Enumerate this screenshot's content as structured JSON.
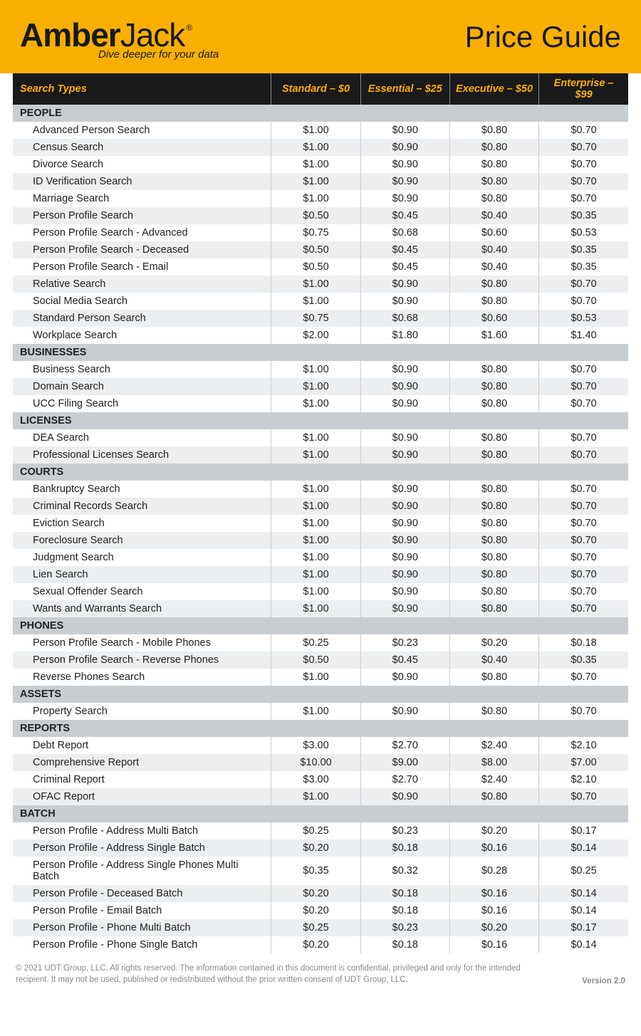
{
  "brand": {
    "name_part1": "Amber",
    "name_part2": "Jack",
    "registered": "®",
    "tagline": "Dive deeper for your data"
  },
  "title": "Price Guide",
  "columns": {
    "name": "Search Types",
    "tiers": [
      "Standard – $0",
      "Essential – $25",
      "Executive – $50",
      "Enterprise – $99"
    ]
  },
  "sections": [
    {
      "label": "PEOPLE",
      "rows": [
        {
          "name": "Advanced Person Search",
          "prices": [
            "$1.00",
            "$0.90",
            "$0.80",
            "$0.70"
          ]
        },
        {
          "name": "Census Search",
          "prices": [
            "$1.00",
            "$0.90",
            "$0.80",
            "$0.70"
          ]
        },
        {
          "name": "Divorce Search",
          "prices": [
            "$1.00",
            "$0.90",
            "$0.80",
            "$0.70"
          ]
        },
        {
          "name": "ID Verification Search",
          "prices": [
            "$1.00",
            "$0.90",
            "$0.80",
            "$0.70"
          ]
        },
        {
          "name": "Marriage Search",
          "prices": [
            "$1.00",
            "$0.90",
            "$0.80",
            "$0.70"
          ]
        },
        {
          "name": "Person Profile Search",
          "prices": [
            "$0.50",
            "$0.45",
            "$0.40",
            "$0.35"
          ]
        },
        {
          "name": "Person Profile Search - Advanced",
          "prices": [
            "$0.75",
            "$0.68",
            "$0.60",
            "$0.53"
          ]
        },
        {
          "name": "Person Profile Search - Deceased",
          "prices": [
            "$0.50",
            "$0.45",
            "$0.40",
            "$0.35"
          ]
        },
        {
          "name": "Person Profile Search - Email",
          "prices": [
            "$0.50",
            "$0.45",
            "$0.40",
            "$0.35"
          ]
        },
        {
          "name": "Relative Search",
          "prices": [
            "$1.00",
            "$0.90",
            "$0.80",
            "$0.70"
          ]
        },
        {
          "name": "Social Media Search",
          "prices": [
            "$1.00",
            "$0.90",
            "$0.80",
            "$0.70"
          ]
        },
        {
          "name": "Standard Person Search",
          "prices": [
            "$0.75",
            "$0.68",
            "$0.60",
            "$0.53"
          ]
        },
        {
          "name": "Workplace Search",
          "prices": [
            "$2.00",
            "$1.80",
            "$1.60",
            "$1.40"
          ]
        }
      ]
    },
    {
      "label": "BUSINESSES",
      "rows": [
        {
          "name": "Business Search",
          "prices": [
            "$1.00",
            "$0.90",
            "$0.80",
            "$0.70"
          ]
        },
        {
          "name": "Domain Search",
          "prices": [
            "$1.00",
            "$0.90",
            "$0.80",
            "$0.70"
          ]
        },
        {
          "name": "UCC Filing Search",
          "prices": [
            "$1.00",
            "$0.90",
            "$0.80",
            "$0.70"
          ]
        }
      ]
    },
    {
      "label": "LICENSES",
      "rows": [
        {
          "name": "DEA Search",
          "prices": [
            "$1.00",
            "$0.90",
            "$0.80",
            "$0.70"
          ]
        },
        {
          "name": "Professional Licenses Search",
          "prices": [
            "$1.00",
            "$0.90",
            "$0.80",
            "$0.70"
          ]
        }
      ]
    },
    {
      "label": "COURTS",
      "rows": [
        {
          "name": "Bankruptcy Search",
          "prices": [
            "$1.00",
            "$0.90",
            "$0.80",
            "$0.70"
          ]
        },
        {
          "name": "Criminal Records Search",
          "prices": [
            "$1.00",
            "$0.90",
            "$0.80",
            "$0.70"
          ]
        },
        {
          "name": "Eviction Search",
          "prices": [
            "$1.00",
            "$0.90",
            "$0.80",
            "$0.70"
          ]
        },
        {
          "name": "Foreclosure Search",
          "prices": [
            "$1.00",
            "$0.90",
            "$0.80",
            "$0.70"
          ]
        },
        {
          "name": "Judgment Search",
          "prices": [
            "$1.00",
            "$0.90",
            "$0.80",
            "$0.70"
          ]
        },
        {
          "name": "Lien Search",
          "prices": [
            "$1.00",
            "$0.90",
            "$0.80",
            "$0.70"
          ]
        },
        {
          "name": "Sexual Offender Search",
          "prices": [
            "$1.00",
            "$0.90",
            "$0.80",
            "$0.70"
          ]
        },
        {
          "name": "Wants and Warrants Search",
          "prices": [
            "$1.00",
            "$0.90",
            "$0.80",
            "$0.70"
          ]
        }
      ]
    },
    {
      "label": "PHONES",
      "rows": [
        {
          "name": "Person Profile Search - Mobile Phones",
          "prices": [
            "$0.25",
            "$0.23",
            "$0.20",
            "$0.18"
          ]
        },
        {
          "name": "Person Profile Search - Reverse Phones",
          "prices": [
            "$0.50",
            "$0.45",
            "$0.40",
            "$0.35"
          ]
        },
        {
          "name": "Reverse Phones Search",
          "prices": [
            "$1.00",
            "$0.90",
            "$0.80",
            "$0.70"
          ]
        }
      ]
    },
    {
      "label": "ASSETS",
      "rows": [
        {
          "name": "Property Search",
          "prices": [
            "$1.00",
            "$0.90",
            "$0.80",
            "$0.70"
          ]
        }
      ]
    },
    {
      "label": "REPORTS",
      "rows": [
        {
          "name": "Debt Report",
          "prices": [
            "$3.00",
            "$2.70",
            "$2.40",
            "$2.10"
          ]
        },
        {
          "name": "Comprehensive Report",
          "prices": [
            "$10.00",
            "$9.00",
            "$8.00",
            "$7.00"
          ]
        },
        {
          "name": "Criminal Report",
          "prices": [
            "$3.00",
            "$2.70",
            "$2.40",
            "$2.10"
          ]
        },
        {
          "name": "OFAC Report",
          "prices": [
            "$1.00",
            "$0.90",
            "$0.80",
            "$0.70"
          ]
        }
      ]
    },
    {
      "label": "BATCH",
      "rows": [
        {
          "name": "Person Profile - Address Multi Batch",
          "prices": [
            "$0.25",
            "$0.23",
            "$0.20",
            "$0.17"
          ]
        },
        {
          "name": "Person Profile - Address Single Batch",
          "prices": [
            "$0.20",
            "$0.18",
            "$0.16",
            "$0.14"
          ]
        },
        {
          "name": "Person Profile - Address Single Phones Multi Batch",
          "prices": [
            "$0.35",
            "$0.32",
            "$0.28",
            "$0.25"
          ]
        },
        {
          "name": "Person Profile - Deceased Batch",
          "prices": [
            "$0.20",
            "$0.18",
            "$0.16",
            "$0.14"
          ]
        },
        {
          "name": "Person Profile - Email Batch",
          "prices": [
            "$0.20",
            "$0.18",
            "$0.16",
            "$0.14"
          ]
        },
        {
          "name": "Person Profile - Phone Multi Batch",
          "prices": [
            "$0.25",
            "$0.23",
            "$0.20",
            "$0.17"
          ]
        },
        {
          "name": "Person Profile - Phone Single Batch",
          "prices": [
            "$0.20",
            "$0.18",
            "$0.16",
            "$0.14"
          ]
        }
      ]
    }
  ],
  "footer": {
    "copyright": "© 2021 UDT Group, LLC. All rights reserved.  The information contained in this document is confidential, privileged and only for the intended recipient. It may not be used, published or redistributed without the prior written consent of UDT Group, LLC.",
    "version": "Version 2.0"
  },
  "colors": {
    "header_bg": "#f9b000",
    "thead_bg": "#1a1a1a",
    "thead_fg": "#f9b000",
    "section_bg": "#c8cdd2",
    "row_odd_bg": "#eceef0",
    "row_even_bg": "#ffffff",
    "border": "#cccccc"
  }
}
